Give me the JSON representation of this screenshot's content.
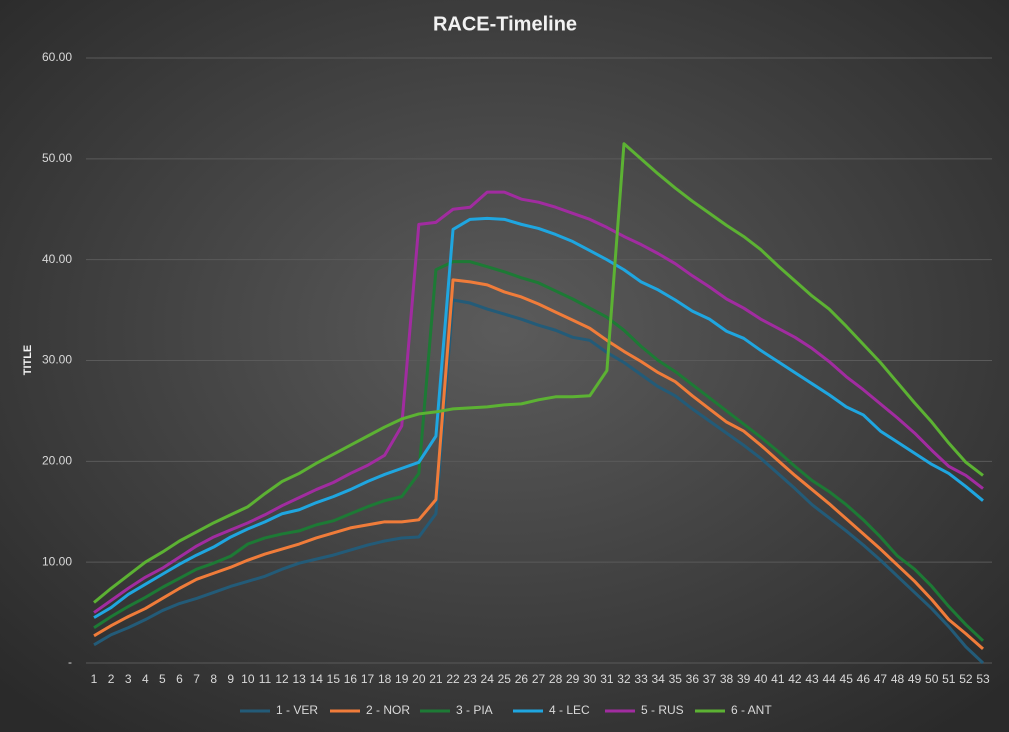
{
  "chart_data": {
    "type": "line",
    "title": "RACE-Timeline",
    "y_label": "TITLE",
    "categories": [
      1,
      2,
      3,
      4,
      5,
      6,
      7,
      8,
      9,
      10,
      11,
      12,
      13,
      14,
      15,
      16,
      17,
      18,
      19,
      20,
      21,
      22,
      23,
      24,
      25,
      26,
      27,
      28,
      29,
      30,
      31,
      32,
      33,
      34,
      35,
      36,
      37,
      38,
      39,
      40,
      41,
      42,
      43,
      44,
      45,
      46,
      47,
      48,
      49,
      50,
      51,
      52,
      53
    ],
    "ylim": [
      0,
      60
    ],
    "yticks": [
      {
        "value": 0,
        "label": "-"
      },
      {
        "value": 10,
        "label": "10.00"
      },
      {
        "value": 20,
        "label": "20.00"
      },
      {
        "value": 30,
        "label": "30.00"
      },
      {
        "value": 40,
        "label": "40.00"
      },
      {
        "value": 50,
        "label": "50.00"
      },
      {
        "value": 60,
        "label": "60.00"
      }
    ],
    "grid": true,
    "legend": "bottom",
    "series": [
      {
        "name": "1 - VER",
        "color": "#235b78",
        "values": [
          1.8,
          2.8,
          3.5,
          4.3,
          5.2,
          5.9,
          6.4,
          7.0,
          7.6,
          8.1,
          8.6,
          9.3,
          9.9,
          10.3,
          10.7,
          11.2,
          11.7,
          12.1,
          12.4,
          12.5,
          14.8,
          36.0,
          35.7,
          35.1,
          34.6,
          34.1,
          33.5,
          33.0,
          32.3,
          32.0,
          30.8,
          29.8,
          28.6,
          27.4,
          26.5,
          25.2,
          24.0,
          22.8,
          21.6,
          20.3,
          18.8,
          17.3,
          15.7,
          14.4,
          13.1,
          11.7,
          10.2,
          8.6,
          7.0,
          5.4,
          3.6,
          1.6,
          0
        ]
      },
      {
        "name": "2 - NOR",
        "color": "#f07c3a",
        "values": [
          2.7,
          3.7,
          4.6,
          5.4,
          6.4,
          7.4,
          8.3,
          8.9,
          9.5,
          10.2,
          10.8,
          11.3,
          11.8,
          12.4,
          12.9,
          13.4,
          13.7,
          14.0,
          14.0,
          14.2,
          16.2,
          38.0,
          37.8,
          37.5,
          36.8,
          36.3,
          35.6,
          34.8,
          34.0,
          33.2,
          32.0,
          30.9,
          29.9,
          28.8,
          27.9,
          26.5,
          25.2,
          23.9,
          23.0,
          21.6,
          20.1,
          18.6,
          17.2,
          15.8,
          14.3,
          12.8,
          11.3,
          9.7,
          8.1,
          6.3,
          4.3,
          2.9,
          1.4
        ]
      },
      {
        "name": "3 - PIA",
        "color": "#1d7a35",
        "values": [
          3.5,
          4.6,
          5.6,
          6.5,
          7.5,
          8.4,
          9.3,
          9.9,
          10.6,
          11.8,
          12.4,
          12.8,
          13.1,
          13.7,
          14.1,
          14.8,
          15.5,
          16.1,
          16.5,
          18.8,
          39.0,
          39.8,
          39.8,
          39.3,
          38.8,
          38.2,
          37.7,
          36.9,
          36.1,
          35.2,
          34.3,
          33.0,
          31.4,
          30.0,
          28.9,
          27.6,
          26.3,
          25.0,
          23.7,
          22.4,
          21.0,
          19.5,
          18.1,
          17.0,
          15.7,
          14.2,
          12.5,
          10.6,
          9.3,
          7.6,
          5.6,
          3.8,
          2.2
        ]
      },
      {
        "name": "4 - LEC",
        "color": "#1fa6e0",
        "values": [
          4.5,
          5.5,
          6.8,
          7.8,
          8.8,
          9.8,
          10.7,
          11.5,
          12.5,
          13.3,
          14.0,
          14.8,
          15.2,
          15.9,
          16.5,
          17.2,
          18.0,
          18.7,
          19.3,
          19.9,
          22.5,
          43.0,
          44.0,
          44.1,
          44.0,
          43.5,
          43.1,
          42.5,
          41.8,
          40.9,
          40.0,
          39.0,
          37.8,
          37.0,
          36.0,
          34.9,
          34.1,
          32.9,
          32.2,
          31.0,
          29.9,
          28.8,
          27.7,
          26.6,
          25.4,
          24.6,
          23.0,
          21.9,
          20.8,
          19.7,
          18.8,
          17.5,
          16.1
        ]
      },
      {
        "name": "5 - RUS",
        "color": "#a12ca0",
        "values": [
          5.0,
          6.2,
          7.4,
          8.5,
          9.4,
          10.5,
          11.6,
          12.5,
          13.2,
          13.9,
          14.7,
          15.6,
          16.4,
          17.2,
          17.9,
          18.8,
          19.6,
          20.6,
          23.5,
          43.5,
          43.7,
          45.0,
          45.2,
          46.7,
          46.7,
          46.0,
          45.7,
          45.2,
          44.6,
          44.0,
          43.2,
          42.3,
          41.5,
          40.6,
          39.6,
          38.4,
          37.3,
          36.1,
          35.2,
          34.1,
          33.2,
          32.3,
          31.2,
          29.9,
          28.4,
          27.1,
          25.7,
          24.3,
          22.8,
          21.1,
          19.5,
          18.6,
          17.3
        ]
      },
      {
        "name": "6 - ANT",
        "color": "#5cb233",
        "values": [
          6.0,
          7.4,
          8.7,
          10.0,
          11.0,
          12.1,
          13.0,
          13.9,
          14.7,
          15.5,
          16.8,
          18.0,
          18.8,
          19.8,
          20.7,
          21.6,
          22.5,
          23.4,
          24.2,
          24.7,
          24.9,
          25.2,
          25.3,
          25.4,
          25.6,
          25.7,
          26.1,
          26.4,
          26.4,
          26.5,
          29.0,
          51.5,
          50.0,
          48.5,
          47.1,
          45.8,
          44.6,
          43.4,
          42.3,
          41.0,
          39.4,
          37.9,
          36.4,
          35.1,
          33.4,
          31.6,
          29.8,
          27.8,
          25.8,
          23.9,
          21.8,
          19.9,
          18.6
        ]
      }
    ]
  }
}
